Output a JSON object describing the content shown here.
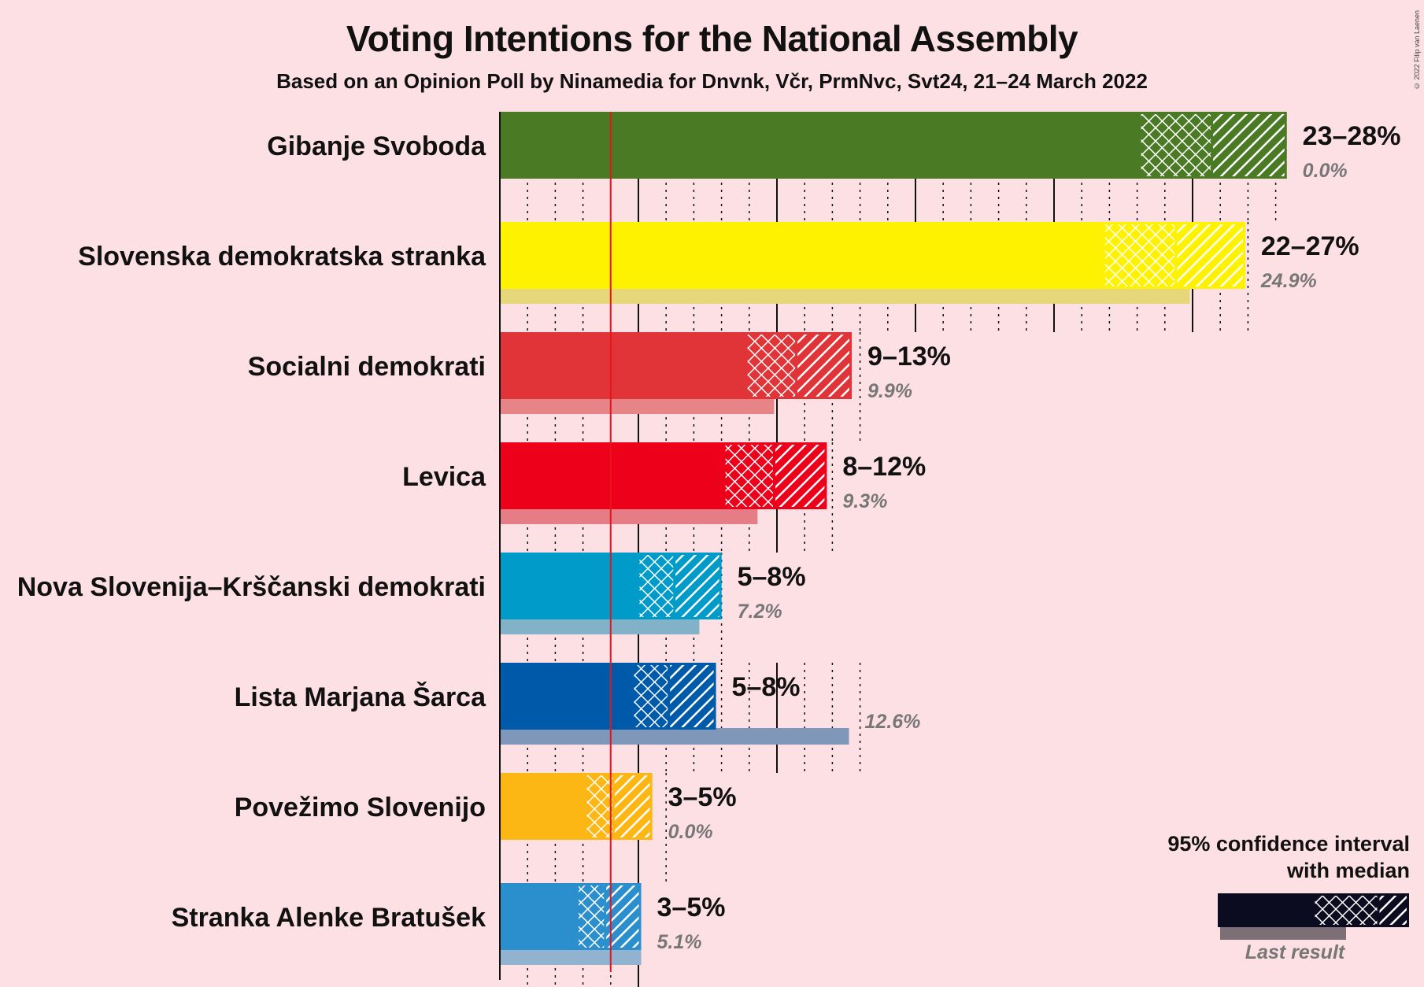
{
  "title": "Voting Intentions for the National Assembly",
  "subtitle": "Based on an Opinion Poll by Ninamedia for Dnvnk, Včr, PrmNvc, Svt24, 21–24 March 2022",
  "credit": "© 2022 Filip van Laenen",
  "legend": {
    "title_line1": "95% confidence interval",
    "title_line2": "with median",
    "last_result": "Last result"
  },
  "chart_data": {
    "type": "bar",
    "orientation": "horizontal",
    "title": "Voting Intentions for the National Assembly",
    "unit": "%",
    "xlim": [
      0,
      28.5
    ],
    "threshold": 4,
    "grid": true,
    "categories": [
      "Gibanje Svoboda",
      "Slovenska demokratska stranka",
      "Socialni demokrati",
      "Levica",
      "Nova Slovenija–Krščanski demokrati",
      "Lista Marjana Šarca",
      "Povežimo Slovenijo",
      "Stranka Alenke Bratušek"
    ],
    "series": [
      {
        "name": "95% confidence interval",
        "values": [
          {
            "low": 23.1,
            "median": 25.7,
            "high": 28.4,
            "label": "23–28%"
          },
          {
            "low": 21.8,
            "median": 24.4,
            "high": 26.9,
            "label": "22–27%"
          },
          {
            "low": 8.9,
            "median": 10.7,
            "high": 12.7,
            "label": "9–13%"
          },
          {
            "low": 8.1,
            "median": 9.9,
            "high": 11.8,
            "label": "8–12%"
          },
          {
            "low": 5.0,
            "median": 6.3,
            "high": 8.0,
            "label": "5–8%"
          },
          {
            "low": 4.8,
            "median": 6.1,
            "high": 7.8,
            "label": "5–8%"
          },
          {
            "low": 3.1,
            "median": 4.1,
            "high": 5.5,
            "label": "3–5%"
          },
          {
            "low": 2.8,
            "median": 3.8,
            "high": 5.1,
            "label": "3–5%"
          }
        ]
      },
      {
        "name": "Last result",
        "values": [
          {
            "value": 0.0,
            "label": "0.0%"
          },
          {
            "value": 24.9,
            "label": "24.9%"
          },
          {
            "value": 9.9,
            "label": "9.9%"
          },
          {
            "value": 9.3,
            "label": "9.3%"
          },
          {
            "value": 7.2,
            "label": "7.2%"
          },
          {
            "value": 12.6,
            "label": "12.6%"
          },
          {
            "value": 0.0,
            "label": "0.0%"
          },
          {
            "value": 5.1,
            "label": "5.1%"
          }
        ]
      }
    ],
    "colors": [
      "#4a7a24",
      "#fff200",
      "#e03438",
      "#ec001a",
      "#009bc9",
      "#005aaa",
      "#fdb714",
      "#2c8fcd"
    ],
    "last_colors": [
      "#a4b48a",
      "#e6d77a",
      "#e68488",
      "#e47d86",
      "#82b2c7",
      "#7f97b8",
      "#e7c070",
      "#92b3cf"
    ]
  }
}
